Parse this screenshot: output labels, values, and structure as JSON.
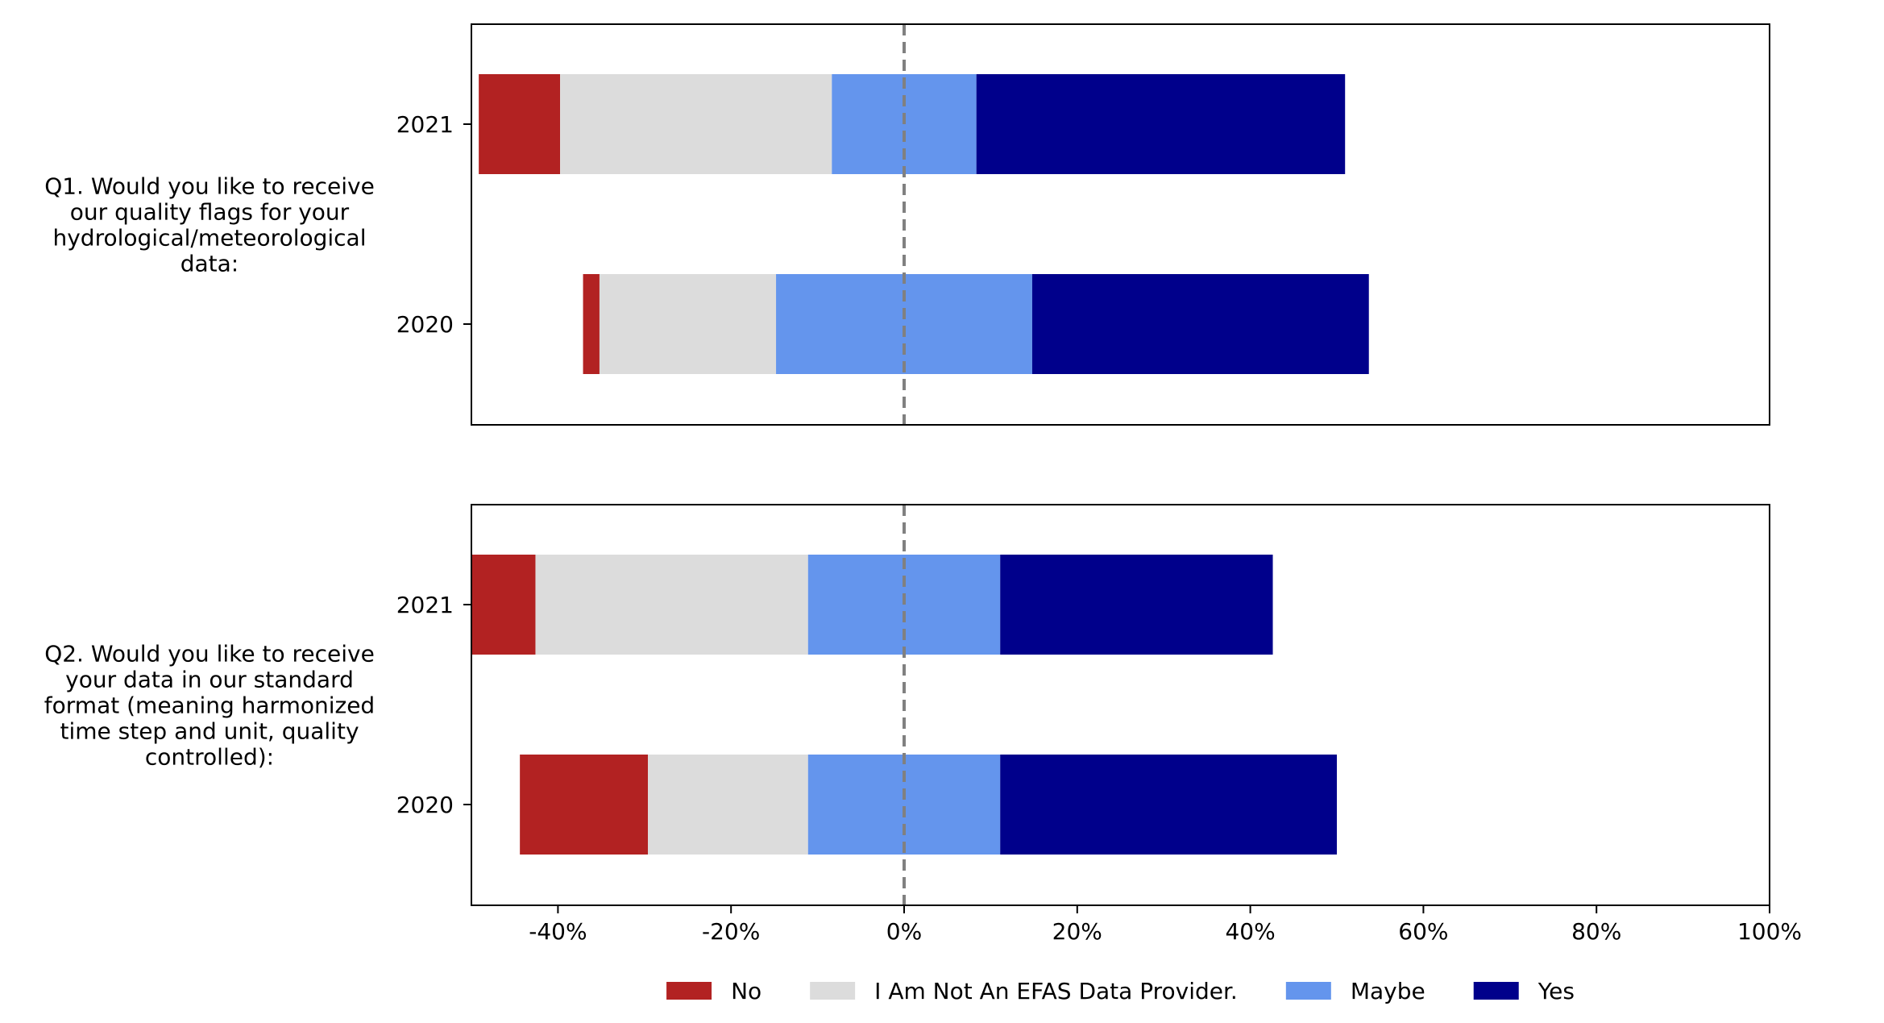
{
  "chart_data": {
    "type": "bar",
    "orientation": "horizontal",
    "stacked": true,
    "diverging": true,
    "x_axis": {
      "min": -50,
      "max": 100,
      "ticks": [
        -40,
        -20,
        0,
        20,
        40,
        60,
        80,
        100
      ],
      "tick_labels": [
        "-40%",
        "-20%",
        "0%",
        "20%",
        "40%",
        "60%",
        "80%",
        "100%"
      ],
      "reference_line": 0
    },
    "series_names": [
      "No",
      "I Am Not An EFAS Data Provider.",
      "Maybe",
      "Yes"
    ],
    "series_colors": [
      "#b22222",
      "#dcdcdc",
      "#6495ed",
      "#00008b"
    ],
    "legend_position": "bottom-center",
    "panels": [
      {
        "question_lines": [
          "Q1. Would you like to receive",
          "our quality flags for your",
          "hydrological/meteorological",
          "data:"
        ],
        "categories": [
          "2021",
          "2020"
        ],
        "segments": [
          {
            "category": "2021",
            "values": [
              9.4,
              31.4,
              16.7,
              42.6
            ]
          },
          {
            "category": "2020",
            "values": [
              1.9,
              20.4,
              29.6,
              38.9
            ]
          }
        ]
      },
      {
        "question_lines": [
          "Q2. Would you like to receive",
          "your data in our standard",
          "format (meaning harmonized",
          "time step and unit, quality",
          "controlled):"
        ],
        "categories": [
          "2021",
          "2020"
        ],
        "segments": [
          {
            "category": "2021",
            "values": [
              7.4,
              31.5,
              22.2,
              31.5
            ]
          },
          {
            "category": "2020",
            "values": [
              14.8,
              18.5,
              22.2,
              38.9
            ]
          }
        ]
      }
    ]
  }
}
